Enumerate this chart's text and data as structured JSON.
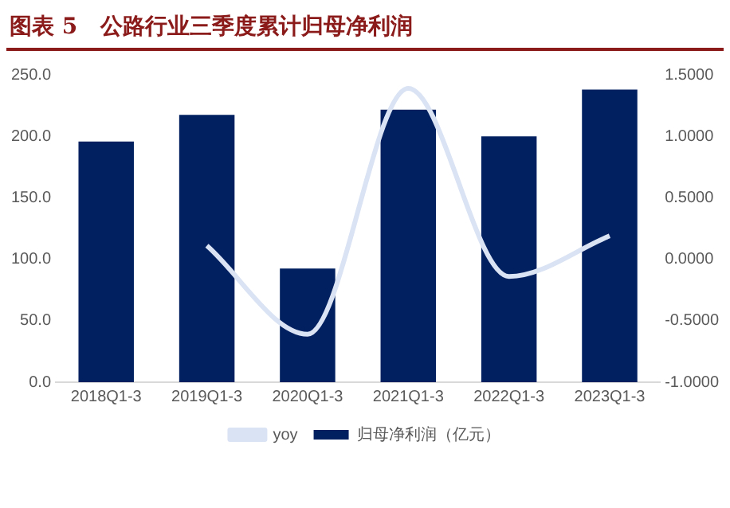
{
  "chart_data": {
    "type": "bar",
    "title": "图表 5   公路行业三季度累计归母净利润",
    "categories": [
      "2018Q1-3",
      "2019Q1-3",
      "2020Q1-3",
      "2021Q1-3",
      "2022Q1-3",
      "2023Q1-3"
    ],
    "series": [
      {
        "name": "归母净利润（亿元）",
        "color": "#002060",
        "values": [
          195.8,
          217.5,
          92.5,
          221.7,
          200.0,
          238.0
        ]
      },
      {
        "name": "yoy",
        "type": "line",
        "axis": "y2",
        "color": "#dae3f3",
        "values": [
          null,
          0.11,
          -0.61,
          1.39,
          -0.14,
          0.19
        ]
      }
    ],
    "ylim": [
      0,
      250
    ],
    "yticks": [
      {
        "value": 0,
        "label": "0.0"
      },
      {
        "value": 50,
        "label": "50.0"
      },
      {
        "value": 100,
        "label": "100.0"
      },
      {
        "value": 150,
        "label": "150.0"
      },
      {
        "value": 200,
        "label": "200.0"
      },
      {
        "value": 250,
        "label": "250.0"
      }
    ],
    "y2lim": [
      -1,
      1.5
    ],
    "y2ticks": [
      {
        "value": -1,
        "label": "-1.0000"
      },
      {
        "value": -0.5,
        "label": "-0.5000"
      },
      {
        "value": 0,
        "label": "0.0000"
      },
      {
        "value": 0.5,
        "label": "0.5000"
      },
      {
        "value": 1,
        "label": "1.0000"
      },
      {
        "value": 1.5,
        "label": "1.5000"
      }
    ],
    "grid": false,
    "legend": "bottom",
    "marker": "none"
  }
}
